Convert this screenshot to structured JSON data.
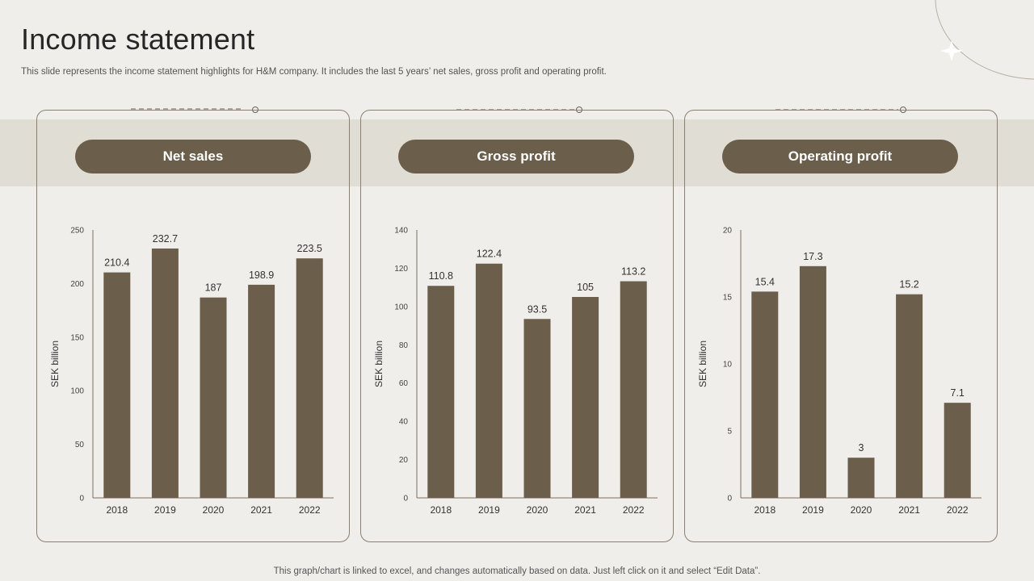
{
  "title": "Income statement",
  "subtitle": "This slide represents the income statement highlights for H&M company. It includes the last 5 years’ net sales, gross profit and operating profit.",
  "footnote": "This graph/chart is linked to excel,  and changes automatically based on data. Just left click on it and select “Edit Data”.",
  "colors": {
    "bar": "#6b5e4a",
    "pill": "#6b5e4a",
    "background": "#f0eeea",
    "band": "#e0ddd5"
  },
  "cards": [
    {
      "title": "Net sales"
    },
    {
      "title": "Gross profit"
    },
    {
      "title": "Operating profit"
    }
  ],
  "chart_data": [
    {
      "type": "bar",
      "categories": [
        "2018",
        "2019",
        "2020",
        "2021",
        "2022"
      ],
      "values": [
        210.4,
        232.7,
        187,
        198.9,
        223.5
      ],
      "ylabel": "SEK billion",
      "ylim": [
        0,
        250
      ],
      "yticks": [
        0,
        50,
        100,
        150,
        200,
        250
      ],
      "grid": false,
      "data_labels": true
    },
    {
      "type": "bar",
      "categories": [
        "2018",
        "2019",
        "2020",
        "2021",
        "2022"
      ],
      "values": [
        110.8,
        122.4,
        93.5,
        105,
        113.2
      ],
      "ylabel": "SEK billion",
      "ylim": [
        0,
        140
      ],
      "yticks": [
        0,
        20,
        40,
        60,
        80,
        100,
        120,
        140
      ],
      "grid": false,
      "data_labels": true
    },
    {
      "type": "bar",
      "categories": [
        "2018",
        "2019",
        "2020",
        "2021",
        "2022"
      ],
      "values": [
        15.4,
        17.3,
        3,
        15.2,
        7.1
      ],
      "ylabel": "SEK billion",
      "ylim": [
        0,
        20
      ],
      "yticks": [
        0,
        5,
        10,
        15,
        20
      ],
      "grid": false,
      "data_labels": true
    }
  ]
}
